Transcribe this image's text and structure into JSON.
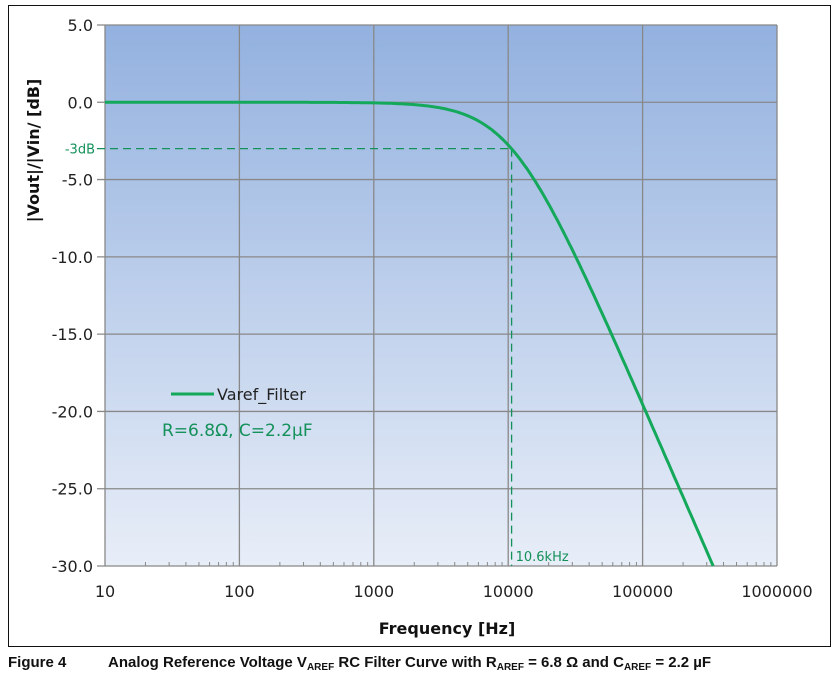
{
  "chart_data": {
    "type": "line",
    "xlabel": "Frequency [Hz]",
    "ylabel": "|Vout|/|Vin/ [dB]",
    "xscale": "log",
    "xlim": [
      10,
      1000000
    ],
    "ylim": [
      -30,
      5
    ],
    "xticks": [
      "10",
      "100",
      "1000",
      "10000",
      "100000",
      "1000000"
    ],
    "yticks": [
      "5.0",
      "0.0",
      "-5.0",
      "-10.0",
      "-15.0",
      "-20.0",
      "-25.0",
      "-30.0"
    ],
    "grid": true,
    "legend_position": "left-middle",
    "series": [
      {
        "name": "Varef_Filter",
        "color": "#14a85a",
        "x": [
          10,
          100,
          1000,
          2000,
          3000,
          5000,
          7000,
          10000,
          10600,
          20000,
          30000,
          50000,
          100000,
          200000,
          335000
        ],
        "y": [
          0,
          0,
          -0.04,
          -0.15,
          -0.34,
          -0.84,
          -1.56,
          -2.77,
          -3.0,
          -6.21,
          -9.54,
          -13.66,
          -19.54,
          -25.53,
          -30.0
        ]
      }
    ],
    "annotations": {
      "level_label": "-3dB",
      "level_value": -3,
      "cutoff_label": "10.6kHz",
      "cutoff_value": 10600,
      "params": "R=6.8Ω, C=2.2µF"
    },
    "colors": {
      "plot_top": "#93b1df",
      "plot_bottom": "#e8eef8",
      "grid": "#888888",
      "annotation": "#14915a"
    }
  },
  "caption": {
    "figure": "Figure 4",
    "text_a": "Analog Reference Voltage V",
    "sub_a": "AREF",
    "text_b": " RC Filter Curve with R",
    "sub_b": "AREF",
    "text_c": " = 6.8 Ω and C",
    "sub_c": "AREF",
    "text_d": " = 2.2 µF"
  }
}
